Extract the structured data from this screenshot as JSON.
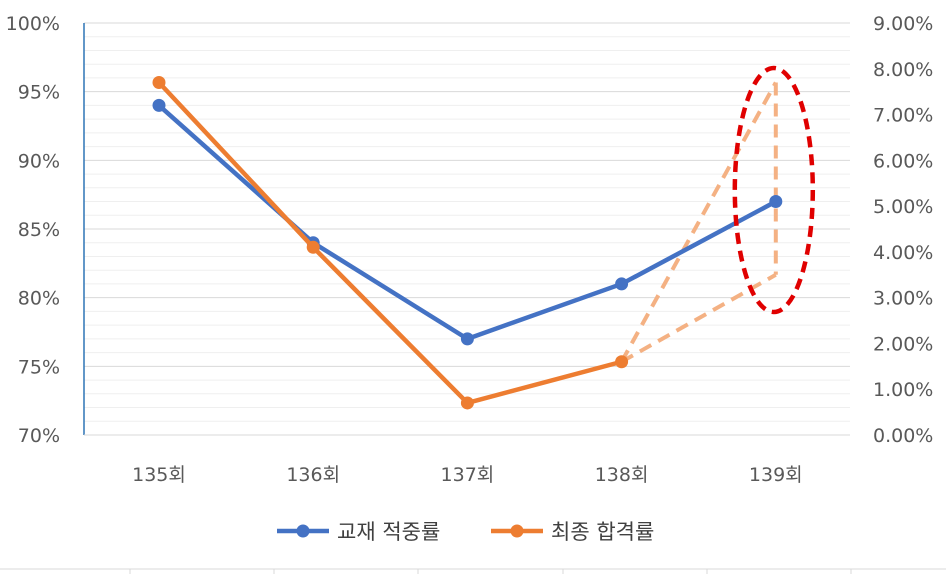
{
  "chart_data": {
    "type": "line",
    "categories": [
      "135회",
      "136회",
      "137회",
      "138회",
      "139회"
    ],
    "y_left": {
      "ylim": [
        0.7,
        1.0
      ],
      "ticks": [
        "70%",
        "75%",
        "80%",
        "85%",
        "90%",
        "95%",
        "100%"
      ]
    },
    "y_right": {
      "ylim": [
        0.0,
        0.09
      ],
      "ticks": [
        "0.00%",
        "1.00%",
        "2.00%",
        "3.00%",
        "4.00%",
        "5.00%",
        "6.00%",
        "7.00%",
        "8.00%",
        "9.00%"
      ]
    },
    "series": [
      {
        "name": "교재 적중률",
        "axis": "left",
        "color": "#4472C4",
        "values": [
          0.94,
          0.84,
          0.77,
          0.81,
          0.87
        ]
      },
      {
        "name": "최종 합격률",
        "axis": "right",
        "color": "#ED7D31",
        "values": [
          0.077,
          0.041,
          0.007,
          0.016,
          null
        ]
      }
    ],
    "projections": {
      "series": "최종 합격률",
      "color": "#F4B183",
      "from_category": "138회",
      "to_category": "139회",
      "from_value": 0.016,
      "to_values": [
        0.077,
        0.035
      ],
      "style": "dashed"
    },
    "highlight": {
      "shape": "ellipse",
      "color": "#E00000",
      "style": "dashed",
      "category": "139회"
    },
    "grid": true,
    "legend": "bottom"
  }
}
